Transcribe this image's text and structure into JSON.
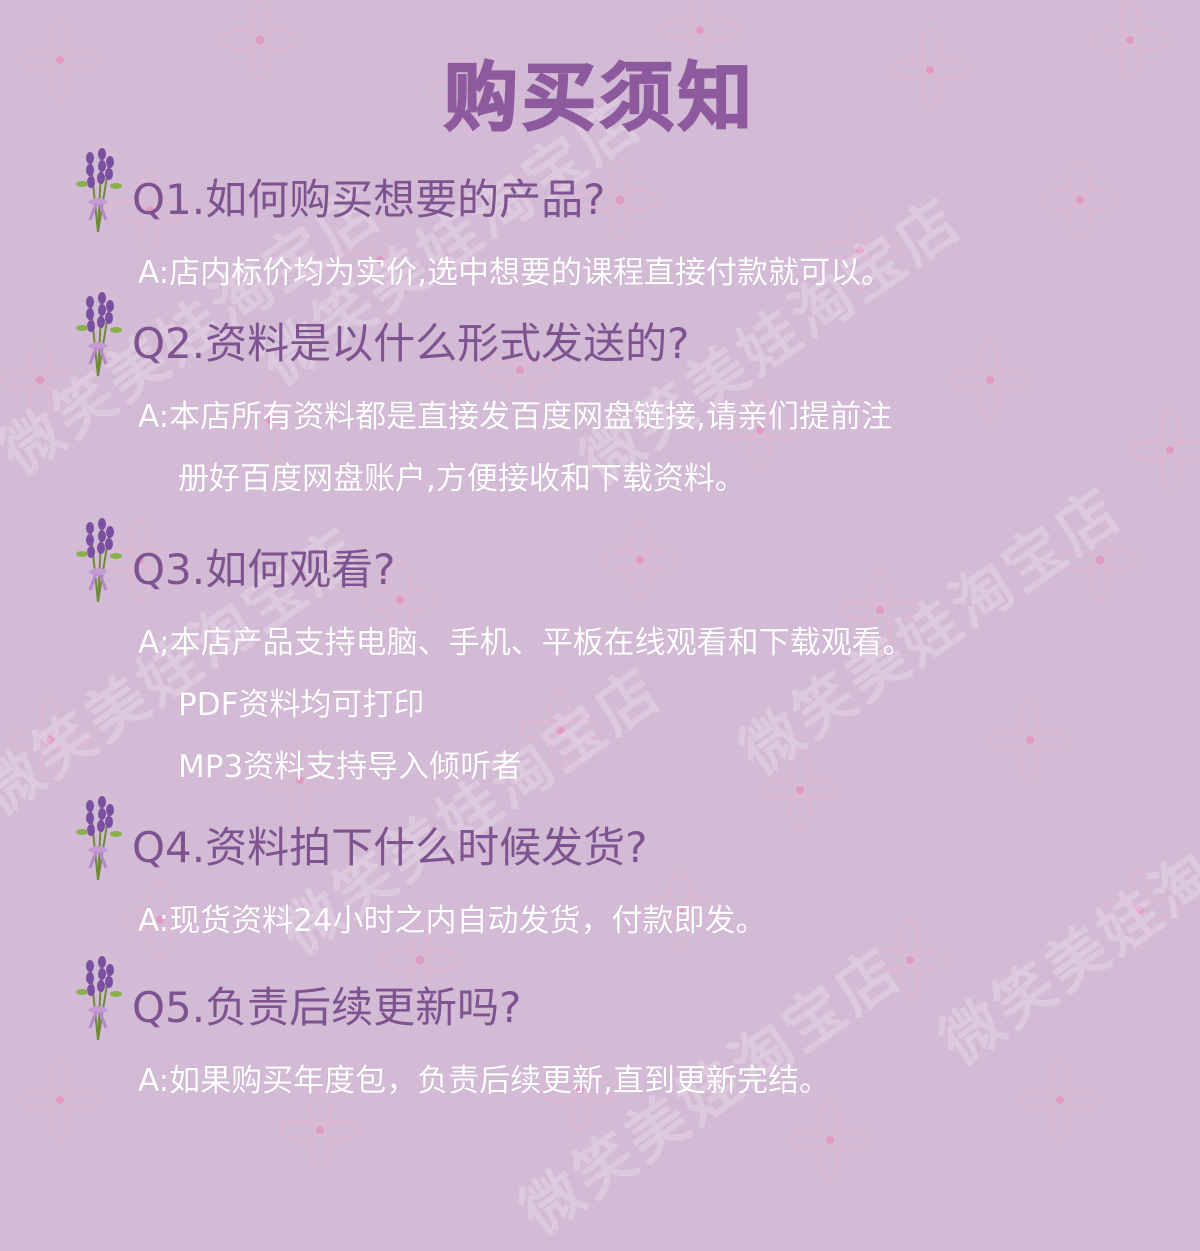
{
  "page": {
    "title": "购买须知",
    "background_color": "#d3bad5",
    "question_color": "#7d5490",
    "answer_color": "#ffffff",
    "watermark_text": "微笑美娃淘宝店"
  },
  "icons": {
    "bullet": "lavender-bouquet-icon"
  },
  "faq": [
    {
      "question": "Q1.如何购买想要的产品?",
      "answer_lines": [
        "A:店内标价均为实价,选中想要的课程直接付款就可以。"
      ]
    },
    {
      "question": "Q2.资料是以什么形式发送的?",
      "answer_lines": [
        "A:本店所有资料都是直接发百度网盘链接,请亲们提前注",
        "册好百度网盘账户,方便接收和下载资料。"
      ]
    },
    {
      "question": "Q3.如何观看?",
      "answer_lines": [
        "A;本店产品支持电脑、手机、平板在线观看和下载观看。",
        "PDF资料均可打印",
        "MP3资料支持导入倾听者"
      ]
    },
    {
      "question": "Q4.资料拍下什么时候发货?",
      "answer_lines": [
        "A:现货资料24小时之内自动发货，付款即发。"
      ]
    },
    {
      "question": "Q5.负责后续更新吗?",
      "answer_lines": [
        "A:如果购买年度包，负责后续更新,直到更新完结。"
      ]
    }
  ]
}
